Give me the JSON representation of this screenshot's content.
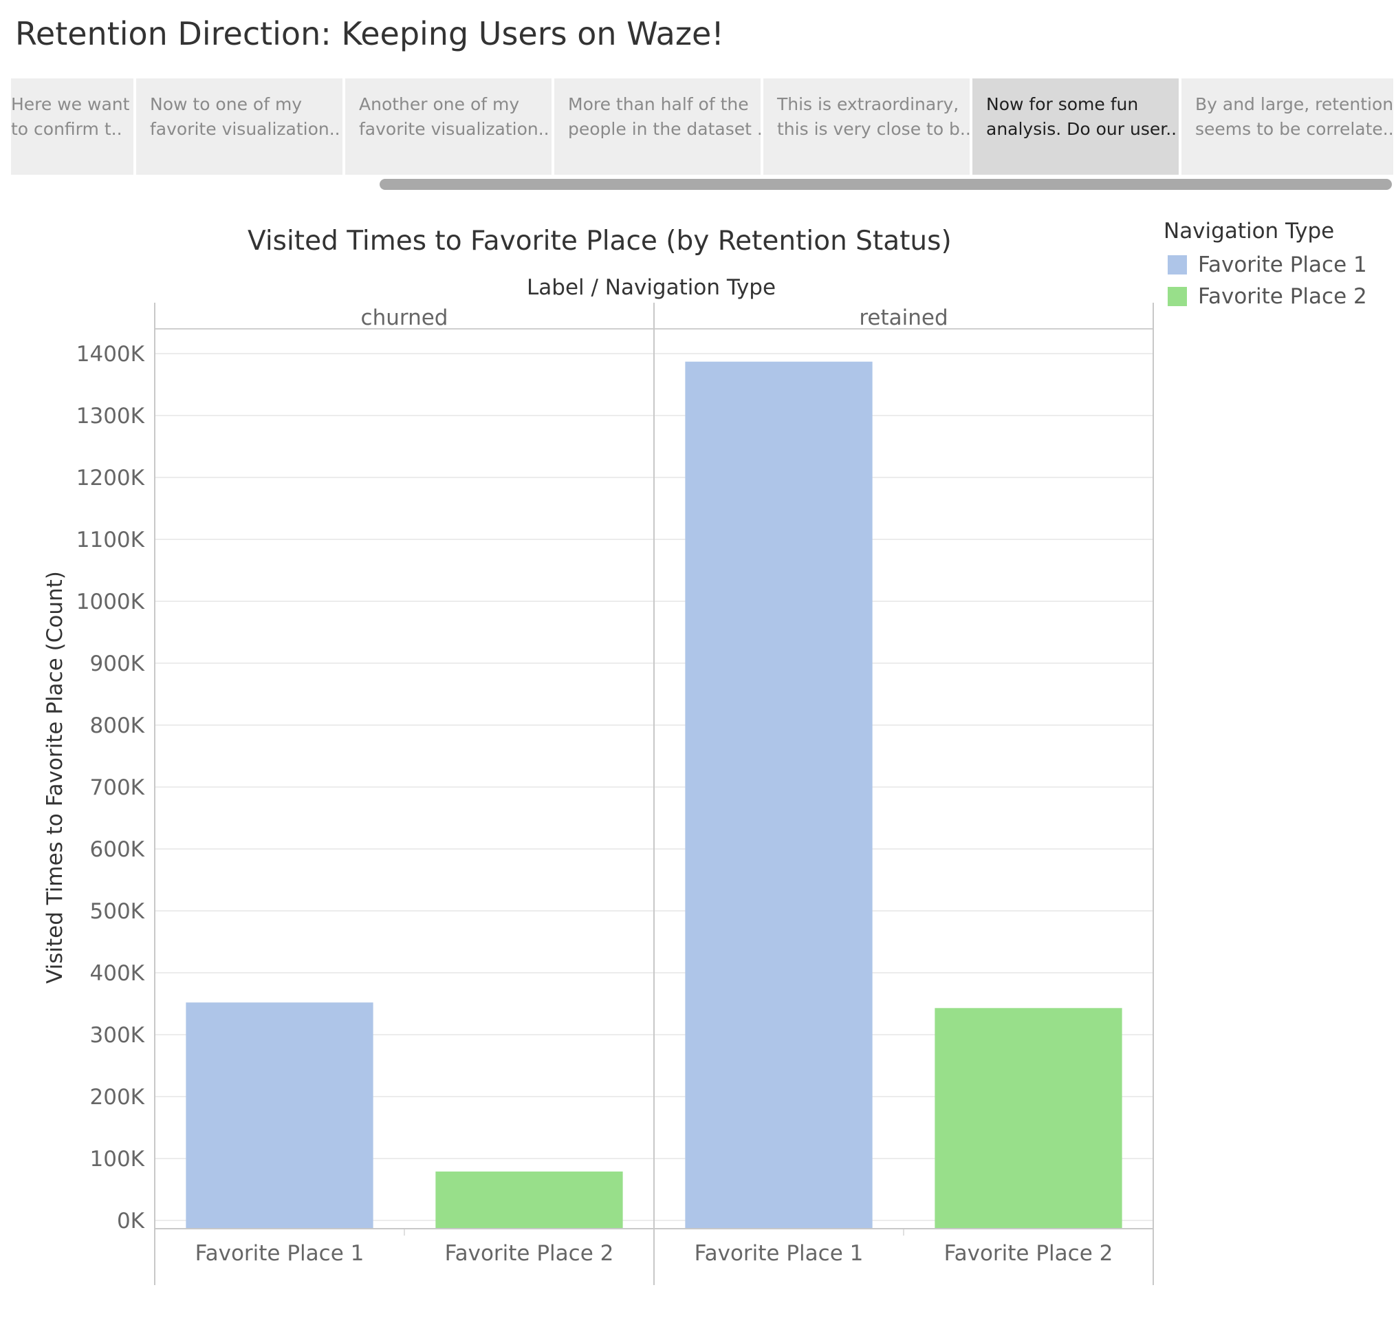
{
  "story": {
    "title": "Retention Direction: Keeping Users on Waze!",
    "tabs": [
      {
        "line1": "Here we want",
        "line2": "to confirm t..",
        "active": false
      },
      {
        "line1": "Now to one of my",
        "line2": "favorite visualization..",
        "active": false
      },
      {
        "line1": "Another one of my",
        "line2": "favorite visualization..",
        "active": false
      },
      {
        "line1": "More than half of the",
        "line2": "people in the dataset ..",
        "active": false
      },
      {
        "line1": "This is extraordinary,",
        "line2": "this is very close to b..",
        "active": false
      },
      {
        "line1": "Now for some fun",
        "line2": "analysis.  Do our user..",
        "active": true
      },
      {
        "line1": "By and large, retention",
        "line2": "seems to be correlate..",
        "active": false
      }
    ]
  },
  "legend": {
    "title": "Navigation Type",
    "items": [
      {
        "label": "Favorite Place 1",
        "color": "#aec5e8"
      },
      {
        "label": "Favorite Place 2",
        "color": "#98df8a"
      }
    ]
  },
  "chart_data": {
    "type": "bar",
    "title": "Visited Times to Favorite Place (by Retention Status)",
    "header_label": "Label  /  Navigation Type",
    "ylabel": "Visited Times to Favorite Place (Count)",
    "xlabel": "",
    "ylim": [
      0,
      1450000
    ],
    "yticks": [
      0,
      100000,
      200000,
      300000,
      400000,
      500000,
      600000,
      700000,
      800000,
      900000,
      1000000,
      1100000,
      1200000,
      1300000,
      1400000
    ],
    "ytick_labels": [
      "0K",
      "100K",
      "200K",
      "300K",
      "400K",
      "500K",
      "600K",
      "700K",
      "800K",
      "900K",
      "1000K",
      "1100K",
      "1200K",
      "1300K",
      "1400K"
    ],
    "grid": true,
    "panels": [
      {
        "name": "churned",
        "categories": [
          "Favorite Place 1",
          "Favorite Place 2"
        ],
        "values": [
          352000,
          79000
        ]
      },
      {
        "name": "retained",
        "categories": [
          "Favorite Place 1",
          "Favorite Place 2"
        ],
        "values": [
          1387000,
          343000
        ]
      }
    ],
    "colors": {
      "Favorite Place 1": "#aec5e8",
      "Favorite Place 2": "#98df8a"
    }
  }
}
